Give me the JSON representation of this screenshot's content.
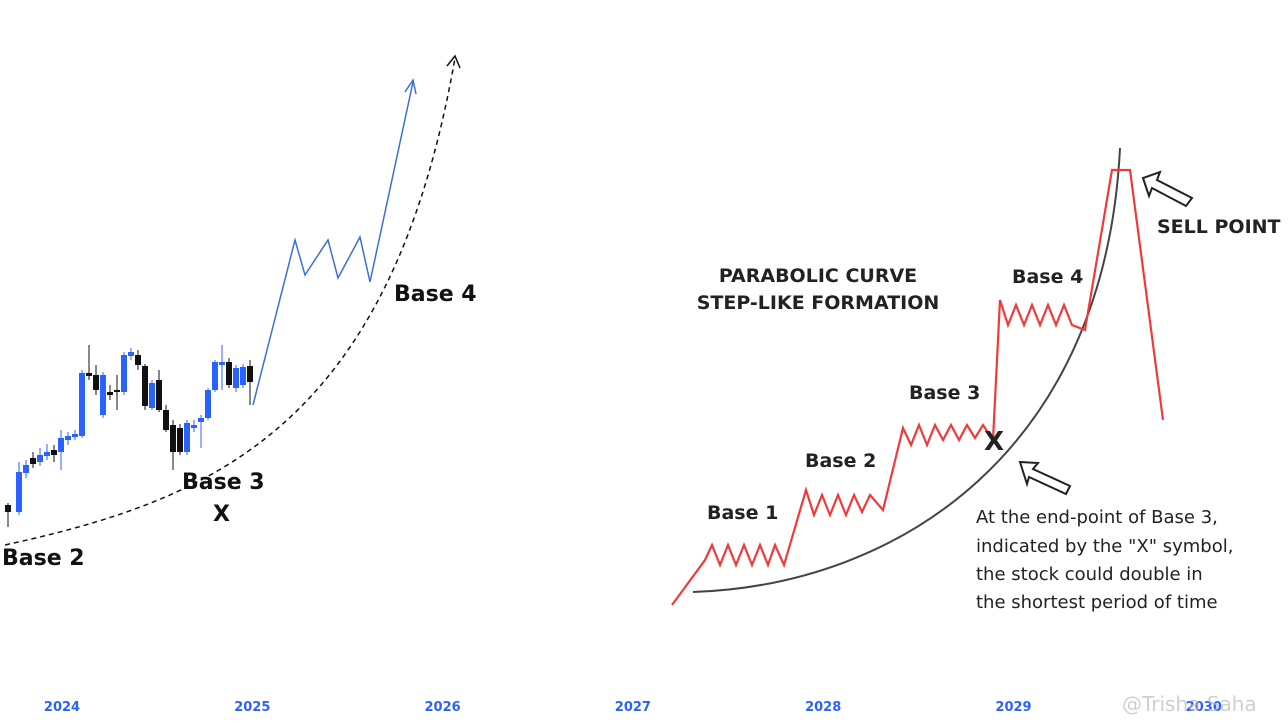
{
  "left_chart": {
    "annotations": {
      "base_2": "Base 2",
      "base_3": "Base 3",
      "x_mark": "X",
      "base_4": "Base 4"
    }
  },
  "illustration": {
    "title_lines": [
      "PARABOLIC CURVE",
      "STEP-LIKE FORMATION"
    ],
    "bases": [
      "Base 1",
      "Base 2",
      "Base 3",
      "Base 4"
    ],
    "x_mark": "X",
    "sell_point": "SELL POINT",
    "note_lines": [
      "At the end-point of Base 3,",
      "indicated by the \"X\" symbol,",
      "the stock could double in",
      "the shortest period of time"
    ]
  },
  "x_axis": {
    "labels": [
      "2024",
      "2025",
      "2026",
      "2027",
      "2028",
      "2029",
      "2030"
    ]
  },
  "watermark": "@Trisha Saha"
}
